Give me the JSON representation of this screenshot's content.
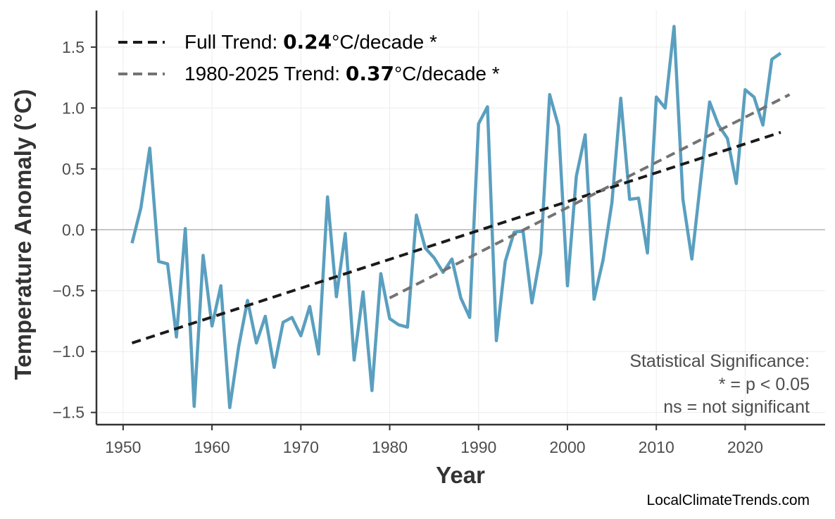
{
  "chart_data": {
    "type": "line",
    "xlabel": "Year",
    "ylabel": "Temperature Anomaly (°C)",
    "xlim": [
      1947,
      2029
    ],
    "ylim": [
      -1.6,
      1.8
    ],
    "x_ticks": [
      1950,
      1960,
      1970,
      1980,
      1990,
      2000,
      2010,
      2020
    ],
    "y_ticks": [
      -1.5,
      -1.0,
      -0.5,
      0.0,
      0.5,
      1.0,
      1.5
    ],
    "y_tick_labels": [
      "−1.5",
      "−1.0",
      "−0.5",
      "0.0",
      "0.5",
      "1.0",
      "1.5"
    ],
    "grid": true,
    "zero_line": true,
    "legend_position": "top-left",
    "series": [
      {
        "name": "",
        "color": "#5a9fbf",
        "style": "solid",
        "x": [
          1951,
          1952,
          1953,
          1954,
          1955,
          1956,
          1957,
          1958,
          1959,
          1960,
          1961,
          1962,
          1963,
          1964,
          1965,
          1966,
          1967,
          1968,
          1969,
          1970,
          1971,
          1972,
          1973,
          1974,
          1975,
          1976,
          1977,
          1978,
          1979,
          1980,
          1981,
          1982,
          1983,
          1984,
          1985,
          1986,
          1987,
          1988,
          1989,
          1990,
          1991,
          1992,
          1993,
          1994,
          1995,
          1996,
          1997,
          1998,
          1999,
          2000,
          2001,
          2002,
          2003,
          2004,
          2005,
          2006,
          2007,
          2008,
          2009,
          2010,
          2011,
          2012,
          2013,
          2014,
          2015,
          2016,
          2017,
          2018,
          2019,
          2020,
          2021,
          2022,
          2023,
          2024
        ],
        "values": [
          -0.11,
          0.18,
          0.67,
          -0.26,
          -0.28,
          -0.88,
          0.01,
          -1.45,
          -0.21,
          -0.79,
          -0.46,
          -1.46,
          -0.96,
          -0.58,
          -0.93,
          -0.71,
          -1.13,
          -0.76,
          -0.72,
          -0.87,
          -0.63,
          -1.02,
          0.27,
          -0.55,
          -0.03,
          -1.07,
          -0.51,
          -1.32,
          -0.36,
          -0.73,
          -0.78,
          -0.8,
          0.12,
          -0.15,
          -0.23,
          -0.35,
          -0.24,
          -0.56,
          -0.72,
          0.87,
          1.01,
          -0.91,
          -0.26,
          -0.02,
          -0.01,
          -0.6,
          -0.19,
          1.11,
          0.85,
          -0.46,
          0.44,
          0.78,
          -0.57,
          -0.25,
          0.22,
          1.08,
          0.25,
          0.26,
          -0.19,
          1.09,
          1.0,
          1.67,
          0.25,
          -0.24,
          0.41,
          1.05,
          0.86,
          0.75,
          0.38,
          1.15,
          1.09,
          0.86,
          1.4,
          1.45
        ]
      },
      {
        "name": "Full Trend",
        "color": "#1a1a1a",
        "style": "dashed",
        "x": [
          1951,
          2024
        ],
        "values": [
          -0.93,
          0.8
        ]
      },
      {
        "name": "1980-2025 Trend",
        "color": "#737373",
        "style": "dashed",
        "x": [
          1980,
          2025
        ],
        "values": [
          -0.56,
          1.11
        ]
      }
    ]
  },
  "legend": {
    "full": {
      "prefix": "Full Trend: ",
      "value": "0.24",
      "suffix": "°C/decade *"
    },
    "recent": {
      "prefix": "1980-2025 Trend: ",
      "value": "0.37",
      "suffix": "°C/decade *"
    }
  },
  "note": {
    "line1": "Statistical Significance:",
    "line2": "* = p < 0.05",
    "line3": "ns = not significant"
  },
  "credit": "LocalClimateTrends.com"
}
